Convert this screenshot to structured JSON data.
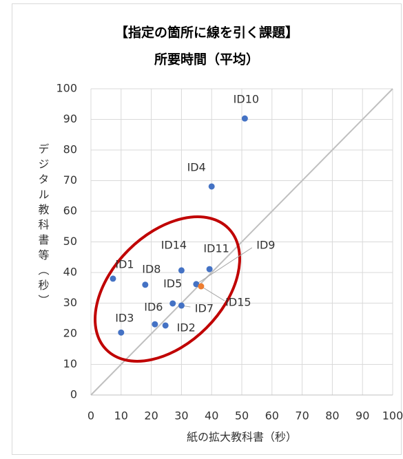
{
  "chart_data": {
    "type": "scatter",
    "title": "【指定の箇所に線を引く課題】",
    "subtitle": "所要時間（平均）",
    "x_label": "紙の拡大教科書（秒）",
    "y_label": "デジタル教科書等（秒）",
    "labels": [
      "ID1",
      "ID8",
      "ID14",
      "ID11",
      "ID9",
      "ID15",
      "ID5",
      "ID7",
      "ID6",
      "ID2",
      "ID3",
      "ID4",
      "ID10"
    ],
    "x": [
      7.3,
      18,
      30,
      39.3,
      34.9,
      36.5,
      27.1,
      30,
      21.2,
      24.7,
      10,
      40,
      51
    ],
    "values": [
      38.0,
      36.0,
      40.7,
      41.1,
      36.2,
      35.5,
      29.9,
      29.2,
      23.1,
      22.7,
      20.4,
      68.1,
      90.3
    ],
    "colors": [
      "#4472c4",
      "#4472c4",
      "#4472c4",
      "#4472c4",
      "#4472c4",
      "#ed7d31",
      "#4472c4",
      "#4472c4",
      "#4472c4",
      "#4472c4",
      "#4472c4",
      "#4472c4",
      "#4472c4"
    ],
    "xlim": [
      0,
      100
    ],
    "ylim": [
      0,
      100
    ],
    "xticks": [
      0,
      10,
      20,
      30,
      40,
      50,
      60,
      70,
      80,
      90,
      100
    ],
    "yticks": [
      0,
      10,
      20,
      30,
      40,
      50,
      60,
      70,
      80,
      90,
      100
    ],
    "grid": true,
    "reference_line_color": "#bfbfbf",
    "annotation_color": "#c00000"
  }
}
